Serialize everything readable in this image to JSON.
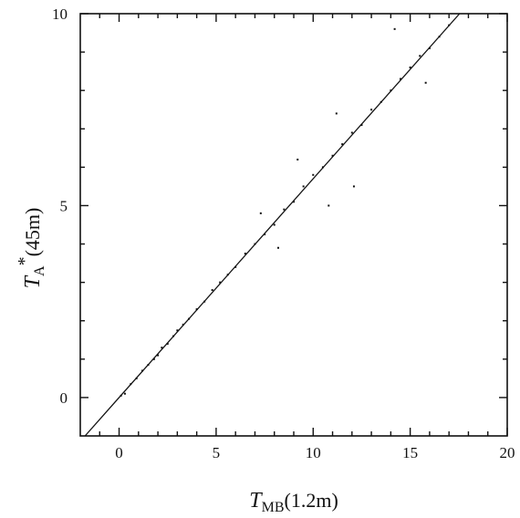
{
  "chart_data": {
    "type": "scatter",
    "title": "",
    "xlabel": {
      "var": "T",
      "sub": "MB",
      "rest": "(1.2m)"
    },
    "ylabel": {
      "var": "T",
      "sub": "A",
      "sup": "*",
      "rest": "(45m)"
    },
    "xlim": [
      -2,
      20
    ],
    "ylim": [
      -1,
      10
    ],
    "xticks": [
      0,
      5,
      10,
      15,
      20
    ],
    "yticks": [
      0,
      5,
      10
    ],
    "grid": false,
    "legend": "none",
    "fit_line": {
      "slope": 0.57,
      "intercept": 0.0
    },
    "series": [
      {
        "points": [
          [
            0.1,
            0.05
          ],
          [
            0.3,
            0.1
          ],
          [
            0.6,
            0.35
          ],
          [
            0.9,
            0.5
          ],
          [
            1.2,
            0.7
          ],
          [
            1.5,
            0.85
          ],
          [
            1.8,
            1.0
          ],
          [
            2.0,
            1.1
          ],
          [
            2.2,
            1.3
          ],
          [
            2.5,
            1.4
          ],
          [
            2.8,
            1.6
          ],
          [
            3.0,
            1.75
          ],
          [
            3.3,
            1.9
          ],
          [
            3.6,
            2.05
          ],
          [
            4.0,
            2.3
          ],
          [
            4.4,
            2.5
          ],
          [
            4.8,
            2.8
          ],
          [
            5.2,
            3.0
          ],
          [
            5.6,
            3.2
          ],
          [
            6.0,
            3.4
          ],
          [
            6.5,
            3.75
          ],
          [
            7.0,
            4.0
          ],
          [
            7.5,
            4.25
          ],
          [
            8.0,
            4.5
          ],
          [
            8.5,
            4.9
          ],
          [
            9.0,
            5.1
          ],
          [
            9.5,
            5.5
          ],
          [
            10.0,
            5.8
          ],
          [
            10.5,
            6.0
          ],
          [
            11.0,
            6.3
          ],
          [
            11.5,
            6.6
          ],
          [
            12.0,
            6.9
          ],
          [
            12.5,
            7.1
          ],
          [
            13.0,
            7.5
          ],
          [
            13.5,
            7.7
          ],
          [
            14.0,
            8.0
          ],
          [
            14.5,
            8.3
          ],
          [
            15.0,
            8.6
          ],
          [
            15.5,
            8.9
          ],
          [
            16.0,
            9.1
          ],
          [
            16.5,
            9.4
          ],
          [
            17.0,
            9.7
          ],
          [
            15.8,
            8.2
          ],
          [
            14.2,
            9.6
          ],
          [
            12.1,
            5.5
          ],
          [
            10.8,
            5.0
          ],
          [
            11.2,
            7.4
          ],
          [
            9.2,
            6.2
          ],
          [
            8.2,
            3.9
          ],
          [
            7.3,
            4.8
          ]
        ]
      }
    ]
  }
}
